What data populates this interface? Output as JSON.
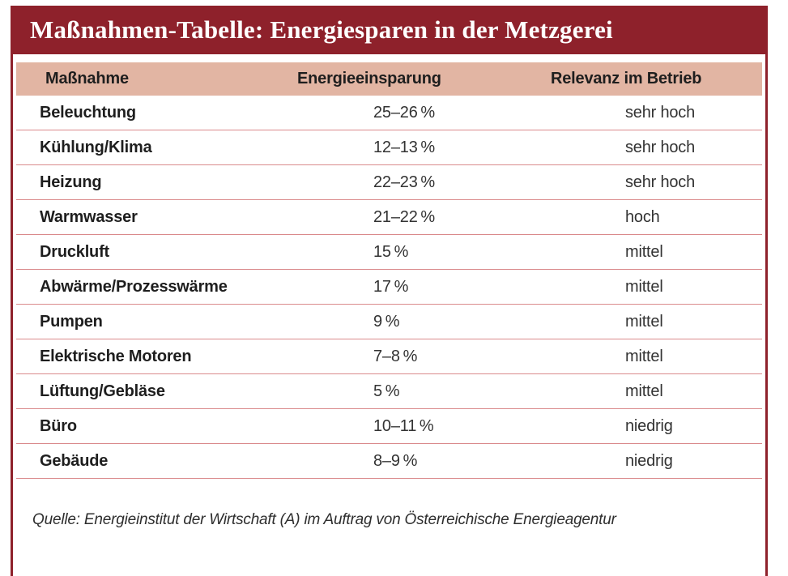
{
  "chart_data": {
    "type": "table",
    "title": "Maßnahmen-Tabelle: Energiesparen in der Metzgerei",
    "columns": [
      "Maßnahme",
      "Energieeinsparung",
      "Relevanz im Betrieb"
    ],
    "rows": [
      [
        "Beleuchtung",
        "25–26 %",
        "sehr hoch"
      ],
      [
        "Kühlung/Klima",
        "12–13 %",
        "sehr hoch"
      ],
      [
        "Heizung",
        "22–23 %",
        "sehr hoch"
      ],
      [
        "Warmwasser",
        "21–22 %",
        "hoch"
      ],
      [
        "Druckluft",
        "15 %",
        "mittel"
      ],
      [
        "Abwärme/Prozesswärme",
        "17 %",
        "mittel"
      ],
      [
        "Pumpen",
        "9 %",
        "mittel"
      ],
      [
        "Elektrische Motoren",
        "7–8 %",
        "mittel"
      ],
      [
        "Lüftung/Gebläse",
        "5 %",
        "mittel"
      ],
      [
        "Büro",
        "10–11 %",
        "niedrig"
      ],
      [
        "Gebäude",
        "8–9 %",
        "niedrig"
      ]
    ],
    "source": "Quelle: Energieinstitut der Wirtschaft (A) im Auftrag von Österreichische Energieagentur",
    "legend_position": "none",
    "grid": "row-separators-only"
  },
  "colors": {
    "banner": "#8E212B",
    "header_bg": "#E2B5A3",
    "separator": "#DA8A8C",
    "title_text": "#FFFFFF",
    "label_text": "#1E1E1E",
    "value_text": "#333333"
  }
}
